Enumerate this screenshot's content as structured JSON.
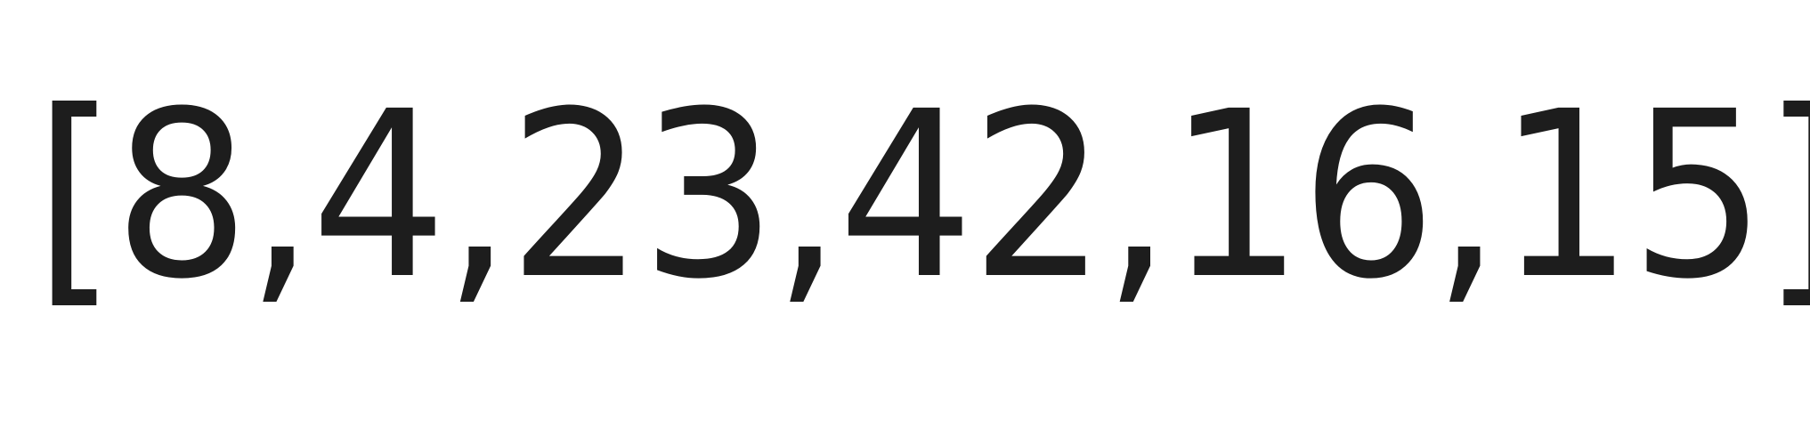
{
  "content": {
    "text": "[8,4,23,42,16,15]"
  },
  "colors": {
    "text": "#1d1d1d",
    "background": "#ffffff"
  }
}
